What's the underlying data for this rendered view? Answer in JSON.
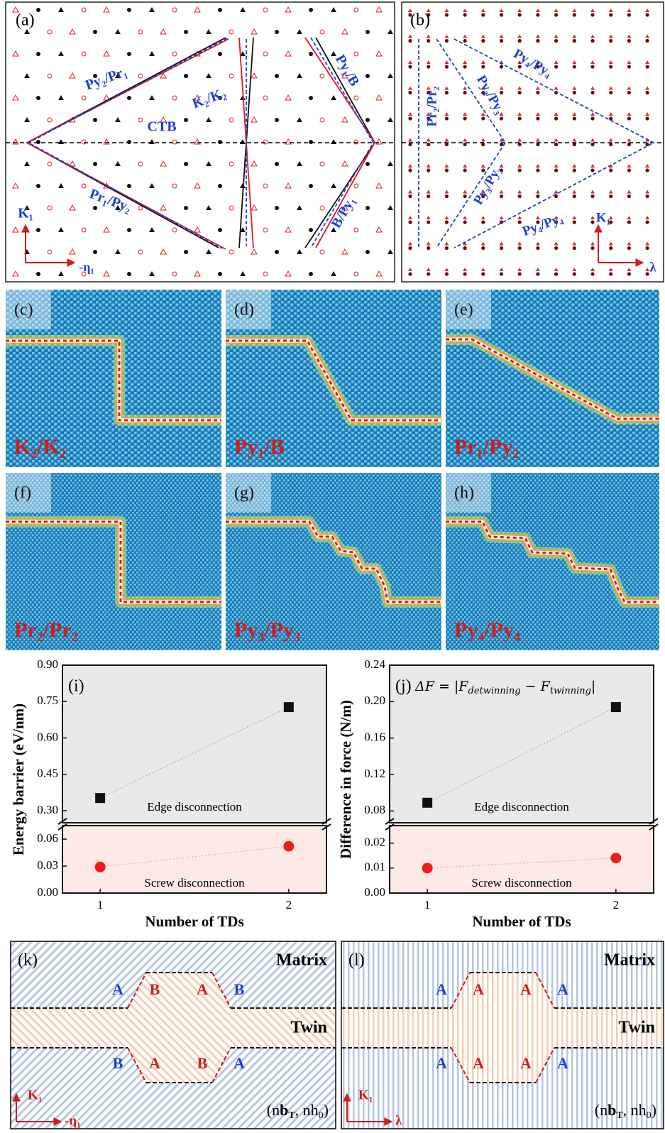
{
  "panels": {
    "a": {
      "label": "(a)",
      "texts": [
        "Py₂/Pr₁",
        "K₂/K₂",
        "CTB",
        "Py₁/B",
        "Pr₁/Py₂",
        "B/Py₁",
        "K₁",
        "-η₁"
      ]
    },
    "b": {
      "label": "(b)",
      "texts": [
        "Pr₂/Pr₂",
        "Py₃/Py₃",
        "Py₄/Py₄",
        "Py₃/Py₃",
        "Py₄/Py₄",
        "K₁",
        "λ"
      ]
    },
    "c": {
      "label": "(c)",
      "caption": "K₂/K₂"
    },
    "d": {
      "label": "(d)",
      "caption": "Py₁/B"
    },
    "e": {
      "label": "(e)",
      "caption": "Pr₁/Py₂"
    },
    "f": {
      "label": "(f)",
      "caption": "Pr₂/Pr₂"
    },
    "g": {
      "label": "(g)",
      "caption": "Py₃/Py₃"
    },
    "h": {
      "label": "(h)",
      "caption": "Py₄/Py₄"
    },
    "k": {
      "label": "(k)",
      "matrix": "Matrix",
      "twin": "Twin",
      "top": [
        "A",
        "B",
        "A",
        "B"
      ],
      "bottom": [
        "B",
        "A",
        "B",
        "A"
      ],
      "k1": "K₁",
      "dir": "-η₁",
      "coords": [
        "(n",
        "b",
        "T",
        ", nh",
        "0",
        ")"
      ]
    },
    "l": {
      "label": "(l)",
      "matrix": "Matrix",
      "twin": "Twin",
      "top": [
        "A",
        "A",
        "A",
        "A"
      ],
      "bottom": [
        "A",
        "A",
        "A",
        "A"
      ],
      "k1": "K₁",
      "dir": "λ",
      "coords": [
        "(n",
        "b",
        "T",
        ", nh",
        "0",
        ")"
      ]
    }
  },
  "chart_data": [
    {
      "type": "line",
      "label": "(i)",
      "ylabel": "Energy barrier (eV/nm)",
      "xlabel": "Number of TDs",
      "annotations": [
        "Edge disconnection",
        "Screw disconnection"
      ],
      "x": [
        1,
        2
      ],
      "xlim": [
        0.8,
        2.2
      ],
      "xticks": [
        1,
        2
      ],
      "ylim": [
        0.25,
        0.9
      ],
      "yticks": [
        {
          "value": 0.3,
          "label": "0.30"
        },
        0.45,
        {
          "value": 0.6,
          "label": "0.60"
        },
        0.75,
        {
          "value": 0.9,
          "label": "0.90"
        }
      ],
      "y2lim": [
        0,
        0.075
      ],
      "y2ticks": [
        {
          "value": 0,
          "label": "0.00"
        },
        0.03,
        0.06
      ],
      "series": [
        {
          "color": "#111111",
          "values": [
            0.352,
            0.727
          ]
        },
        {
          "color": "#ee1c1c",
          "axis": "y2",
          "values": [
            0.029,
            0.052
          ]
        }
      ]
    },
    {
      "type": "line",
      "label": "(j)",
      "formula": [
        "ΔF = |F",
        "detwinning",
        " − F",
        "twinning",
        "|"
      ],
      "ylabel": "Difference in force (N/m)",
      "xlabel": "Number of TDs",
      "annotations": [
        "Edge disconnection",
        "Screw disconnection"
      ],
      "x": [
        1,
        2
      ],
      "xlim": [
        0.8,
        2.2
      ],
      "xticks": [
        1,
        2
      ],
      "ylim": [
        0.067,
        0.24
      ],
      "yticks": [
        0.08,
        0.12,
        0.16,
        {
          "value": 0.2,
          "label": "0.20"
        },
        0.24
      ],
      "y2lim": [
        0,
        0.027
      ],
      "y2ticks": [
        {
          "value": 0,
          "label": "0.00"
        },
        0.01,
        0.02
      ],
      "series": [
        {
          "color": "#111111",
          "values": [
            0.089,
            0.194
          ]
        },
        {
          "color": "#ee1c1c",
          "axis": "y2",
          "values": [
            0.01,
            0.014
          ]
        }
      ]
    }
  ]
}
